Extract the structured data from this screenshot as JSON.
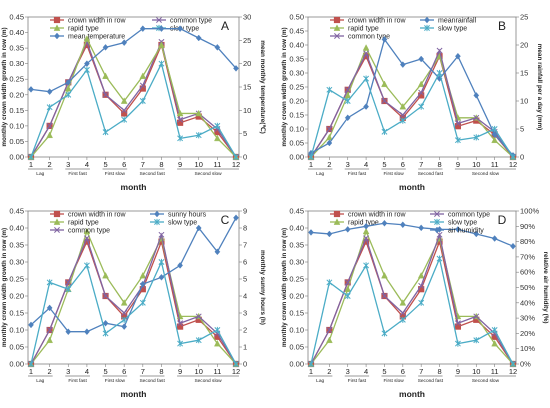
{
  "figure": {
    "xlabel": "month"
  },
  "chart_data": [
    {
      "panel": "A",
      "type": "line",
      "title": "A",
      "xlabel": "month",
      "ylabel": "monthly crown width growth in row (m)",
      "y2label": "mean monthly temperature(℃)",
      "x": [
        1,
        2,
        3,
        4,
        5,
        6,
        7,
        8,
        9,
        10,
        11,
        12
      ],
      "ylim": [
        0,
        0.45
      ],
      "yticks": [
        "0.00",
        "0.05",
        "0.10",
        "0.15",
        "0.20",
        "0.25",
        "0.30",
        "0.35",
        "0.40",
        "0.45"
      ],
      "y2lim": [
        0,
        30
      ],
      "y2ticks": [
        "0",
        "5",
        "10",
        "15",
        "20",
        "25",
        "30"
      ],
      "phases": [
        "Lag",
        "First fast",
        "First slow",
        "Second fast",
        "Second slow"
      ],
      "legend": "top-left",
      "series": [
        {
          "name": "crown width in row",
          "axis": "left",
          "color": "#c0504d",
          "marker": "square",
          "values": [
            0.0,
            0.1,
            0.24,
            0.36,
            0.2,
            0.14,
            0.22,
            0.36,
            0.11,
            0.13,
            0.08,
            0.0
          ]
        },
        {
          "name": "common type",
          "axis": "left",
          "color": "#8064a2",
          "marker": "x",
          "values": [
            0.0,
            0.1,
            0.24,
            0.37,
            0.2,
            0.15,
            0.23,
            0.37,
            0.12,
            0.14,
            0.09,
            0.0
          ]
        },
        {
          "name": "rapid type",
          "axis": "left",
          "color": "#9bbb59",
          "marker": "triangle",
          "values": [
            0.0,
            0.07,
            0.22,
            0.38,
            0.26,
            0.18,
            0.26,
            0.36,
            0.14,
            0.14,
            0.06,
            0.0
          ]
        },
        {
          "name": "slow type",
          "axis": "left",
          "color": "#4bacc6",
          "marker": "asterisk",
          "values": [
            0.0,
            0.16,
            0.2,
            0.28,
            0.08,
            0.12,
            0.18,
            0.3,
            0.06,
            0.07,
            0.1,
            0.0
          ]
        },
        {
          "name": "mean temperature",
          "axis": "right",
          "color": "#4f81bd",
          "marker": "diamond",
          "values": [
            14.5,
            14,
            16,
            20,
            23.5,
            24.5,
            27.5,
            27.5,
            27.5,
            25.5,
            23.5,
            19
          ]
        }
      ]
    },
    {
      "panel": "B",
      "type": "line",
      "title": "B",
      "xlabel": "month",
      "ylabel": "monthly crown width growth in row (m)",
      "y2label": "mean rainfall per a day (mm)",
      "x": [
        1,
        2,
        3,
        4,
        5,
        6,
        7,
        8,
        9,
        10,
        11,
        12
      ],
      "ylim": [
        0,
        0.5
      ],
      "yticks": [
        "0.00",
        "0.05",
        "0.10",
        "0.15",
        "0.20",
        "0.25",
        "0.30",
        "0.35",
        "0.40",
        "0.45",
        "0.50"
      ],
      "y2lim": [
        0,
        25
      ],
      "y2ticks": [
        "0",
        "5",
        "10",
        "15",
        "20",
        "25"
      ],
      "phases": [
        "Lag",
        "First fast",
        "First slow",
        "Second fast",
        "Second slow"
      ],
      "legend": "top",
      "series": [
        {
          "name": "crown width in row",
          "axis": "left",
          "color": "#c0504d",
          "marker": "square",
          "values": [
            0.0,
            0.1,
            0.24,
            0.36,
            0.2,
            0.14,
            0.22,
            0.36,
            0.11,
            0.13,
            0.08,
            0.0
          ]
        },
        {
          "name": "rapid type",
          "axis": "left",
          "color": "#9bbb59",
          "marker": "triangle",
          "values": [
            0.0,
            0.07,
            0.22,
            0.39,
            0.26,
            0.18,
            0.26,
            0.36,
            0.14,
            0.14,
            0.06,
            0.0
          ]
        },
        {
          "name": "common type",
          "axis": "left",
          "color": "#8064a2",
          "marker": "x",
          "values": [
            0.0,
            0.1,
            0.24,
            0.37,
            0.2,
            0.15,
            0.23,
            0.38,
            0.12,
            0.14,
            0.09,
            0.0
          ]
        },
        {
          "name": "meanrainfall",
          "axis": "right",
          "color": "#4f81bd",
          "marker": "diamond",
          "values": [
            0.7,
            2.5,
            7,
            9,
            21,
            16.5,
            17.5,
            14,
            18,
            11,
            4,
            0.3
          ]
        },
        {
          "name": "slow type",
          "axis": "left",
          "color": "#4bacc6",
          "marker": "asterisk",
          "values": [
            0.0,
            0.24,
            0.2,
            0.28,
            0.09,
            0.13,
            0.18,
            0.3,
            0.06,
            0.07,
            0.1,
            0.0
          ]
        }
      ]
    },
    {
      "panel": "C",
      "type": "line",
      "title": "C",
      "xlabel": "month",
      "ylabel": "monthly crown width growth in row (m)",
      "y2label": "monthly sunny hours (h)",
      "x": [
        1,
        2,
        3,
        4,
        5,
        6,
        7,
        8,
        9,
        10,
        11,
        12
      ],
      "ylim": [
        0,
        0.45
      ],
      "yticks": [
        "0.00",
        "0.05",
        "0.10",
        "0.15",
        "0.20",
        "0.25",
        "0.30",
        "0.35",
        "0.40",
        "0.45"
      ],
      "y2lim": [
        0,
        9
      ],
      "y2ticks": [
        "0",
        "1",
        "2",
        "3",
        "4",
        "5",
        "6",
        "7",
        "8",
        "9"
      ],
      "phases": [
        "Lag",
        "First fast",
        "First slow",
        "Second fast",
        "Second slow"
      ],
      "legend": "top-left",
      "series": [
        {
          "name": "crown width in row",
          "axis": "left",
          "color": "#c0504d",
          "marker": "square",
          "values": [
            0.0,
            0.1,
            0.24,
            0.36,
            0.2,
            0.14,
            0.22,
            0.36,
            0.11,
            0.13,
            0.08,
            0.0
          ]
        },
        {
          "name": "rapid type",
          "axis": "left",
          "color": "#9bbb59",
          "marker": "triangle",
          "values": [
            0.0,
            0.07,
            0.22,
            0.39,
            0.26,
            0.18,
            0.26,
            0.37,
            0.14,
            0.14,
            0.06,
            0.0
          ]
        },
        {
          "name": "common type",
          "axis": "left",
          "color": "#8064a2",
          "marker": "x",
          "values": [
            0.0,
            0.1,
            0.24,
            0.37,
            0.2,
            0.15,
            0.23,
            0.38,
            0.12,
            0.14,
            0.09,
            0.0
          ]
        },
        {
          "name": "sunny hours",
          "axis": "right",
          "color": "#4f81bd",
          "marker": "diamond",
          "values": [
            2.3,
            3.3,
            1.9,
            1.9,
            2.4,
            2.2,
            4.7,
            5.1,
            5.8,
            8.0,
            6.6,
            8.6
          ]
        },
        {
          "name": "slow type",
          "axis": "left",
          "color": "#4bacc6",
          "marker": "asterisk",
          "values": [
            0.0,
            0.24,
            0.22,
            0.29,
            0.09,
            0.13,
            0.18,
            0.3,
            0.06,
            0.07,
            0.1,
            0.0
          ]
        }
      ]
    },
    {
      "panel": "D",
      "type": "line",
      "title": "D",
      "xlabel": "month",
      "ylabel": "monthly crown width growth in row (m)",
      "y2label": "relative air humidity (%)",
      "x": [
        1,
        2,
        3,
        4,
        5,
        6,
        7,
        8,
        9,
        10,
        11,
        12
      ],
      "ylim": [
        0,
        0.45
      ],
      "yticks": [
        "0.00",
        "0.05",
        "0.10",
        "0.15",
        "0.20",
        "0.25",
        "0.30",
        "0.35",
        "0.40",
        "0.45"
      ],
      "y2lim": [
        0,
        100
      ],
      "y2ticks": [
        "0",
        "10",
        "20",
        "30",
        "40",
        "50",
        "60",
        "70",
        "80",
        "90",
        "100"
      ],
      "y2format": "percent",
      "phases": [
        "Lag",
        "First fast",
        "First slow",
        "Second fast",
        "Second slow"
      ],
      "legend": "top",
      "series": [
        {
          "name": "crown width in row",
          "axis": "left",
          "color": "#c0504d",
          "marker": "square",
          "values": [
            0.0,
            0.1,
            0.24,
            0.36,
            0.2,
            0.14,
            0.22,
            0.36,
            0.11,
            0.13,
            0.08,
            0.0
          ]
        },
        {
          "name": "rapid type",
          "axis": "left",
          "color": "#9bbb59",
          "marker": "triangle",
          "values": [
            0.0,
            0.07,
            0.22,
            0.39,
            0.26,
            0.18,
            0.26,
            0.37,
            0.14,
            0.14,
            0.06,
            0.0
          ]
        },
        {
          "name": "common type",
          "axis": "left",
          "color": "#8064a2",
          "marker": "x",
          "values": [
            0.0,
            0.1,
            0.24,
            0.37,
            0.2,
            0.15,
            0.23,
            0.38,
            0.12,
            0.14,
            0.09,
            0.0
          ]
        },
        {
          "name": "slow type",
          "axis": "left",
          "color": "#4bacc6",
          "marker": "asterisk",
          "values": [
            0.0,
            0.24,
            0.2,
            0.29,
            0.09,
            0.13,
            0.18,
            0.31,
            0.06,
            0.07,
            0.1,
            0.0
          ]
        },
        {
          "name": "air humidity",
          "axis": "right",
          "color": "#4f81bd",
          "marker": "diamond",
          "values": [
            86,
            85,
            88,
            90,
            92,
            91,
            89,
            88,
            88,
            85,
            82,
            77
          ]
        }
      ]
    }
  ]
}
